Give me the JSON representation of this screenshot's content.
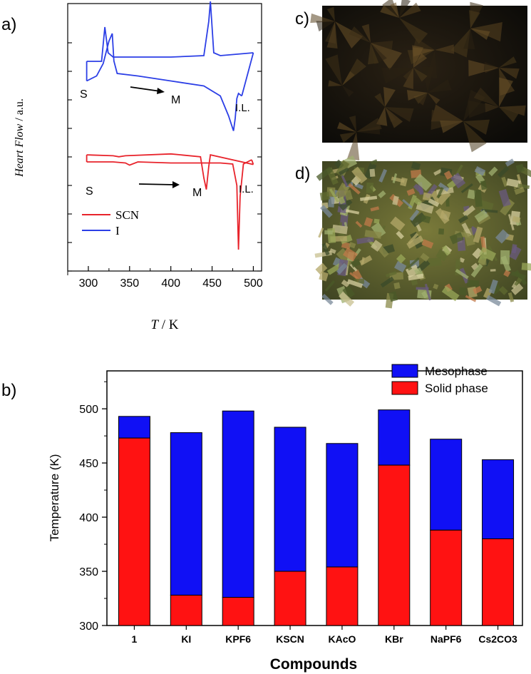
{
  "colors": {
    "scn": "#e8232b",
    "iodide": "#2c3fe6",
    "mesophase": "#1010f5",
    "solid": "#ff1212",
    "axis": "#000000"
  },
  "panel_labels": {
    "a": "a)",
    "b": "b)",
    "c": "c)",
    "d": "d)"
  },
  "dsc": {
    "ylabel_main": "Heart Flow",
    "ylabel_unit": " / a.u.",
    "xlabel_var": "T",
    "xlabel_unit": " / K",
    "annotations_top": {
      "solid": "S",
      "meso": "M",
      "il": "I.L."
    },
    "annotations_bottom": {
      "solid": "S",
      "meso": "M",
      "il": "I.L."
    },
    "legend": {
      "scn": "SCN",
      "iodide": "I"
    }
  },
  "micrographs": {
    "c": {
      "texture": "dark-fan-texture"
    },
    "d": {
      "texture": "bright-mosaic-texture"
    }
  },
  "chart_data": [
    {
      "type": "line",
      "title": "",
      "xlabel": "T / K",
      "ylabel": "Heart Flow / a.u.",
      "xlim": [
        275,
        510
      ],
      "xticks": [
        "300",
        "350",
        "400",
        "450",
        "500"
      ],
      "series": [
        {
          "name": "I",
          "color": "#2c3fe6",
          "heating": [
            [
              298,
              0.3
            ],
            [
              310,
              0.1
            ],
            [
              318,
              -0.4
            ],
            [
              325,
              -1.3
            ],
            [
              329,
              -1.6
            ],
            [
              331,
              -0.5
            ],
            [
              335,
              0.0
            ],
            [
              360,
              0.1
            ],
            [
              400,
              0.3
            ],
            [
              440,
              0.5
            ],
            [
              460,
              0.9
            ],
            [
              470,
              1.7
            ],
            [
              476,
              2.3
            ],
            [
              478,
              1.8
            ],
            [
              480,
              1.0
            ],
            [
              482,
              0.8
            ],
            [
              486,
              0.9
            ]
          ],
          "cooling": [
            [
              298,
              1.6
            ],
            [
              316,
              1.6
            ],
            [
              320,
              2.8
            ],
            [
              324,
              1.9
            ],
            [
              330,
              1.75
            ],
            [
              400,
              1.75
            ],
            [
              440,
              1.8
            ],
            [
              446,
              3.0
            ],
            [
              448,
              3.7
            ],
            [
              452,
              1.9
            ],
            [
              460,
              1.8
            ],
            [
              500,
              1.9
            ]
          ]
        },
        {
          "name": "SCN",
          "color": "#e8232b",
          "heating": [
            [
              298,
              3.4
            ],
            [
              330,
              3.4
            ],
            [
              345,
              3.45
            ],
            [
              350,
              3.55
            ],
            [
              360,
              3.4
            ],
            [
              400,
              3.45
            ],
            [
              460,
              3.45
            ],
            [
              475,
              3.5
            ],
            [
              480,
              4.5
            ],
            [
              482,
              7.5
            ],
            [
              484,
              5.0
            ],
            [
              488,
              3.5
            ],
            [
              498,
              3.3
            ]
          ],
          "cooling": [
            [
              298,
              2.7
            ],
            [
              330,
              2.65
            ],
            [
              337,
              2.6
            ],
            [
              345,
              2.65
            ],
            [
              400,
              2.75
            ],
            [
              436,
              2.6
            ],
            [
              440,
              1.5
            ],
            [
              443,
              0.9
            ],
            [
              446,
              2.1
            ],
            [
              448,
              2.7
            ],
            [
              500,
              2.2
            ]
          ]
        }
      ]
    },
    {
      "type": "bar",
      "stacked": true,
      "title": "",
      "xlabel": "Compounds",
      "ylabel": "Temperature (K)",
      "ylim": [
        300,
        535
      ],
      "yticks": [
        300,
        350,
        400,
        450,
        500
      ],
      "categories": [
        "1",
        "KI",
        "KPF6",
        "KSCN",
        "KAcO",
        "KBr",
        "NaPF6",
        "Cs2CO3"
      ],
      "series": [
        {
          "name": "Mesophase",
          "color": "#1010f5",
          "upper": [
            493,
            478,
            498,
            483,
            468,
            499,
            472,
            453
          ]
        },
        {
          "name": "Solid phase",
          "color": "#ff1212",
          "values": [
            473,
            328,
            326,
            350,
            354,
            448,
            388,
            380
          ]
        }
      ],
      "legend_position": "top-right"
    }
  ]
}
